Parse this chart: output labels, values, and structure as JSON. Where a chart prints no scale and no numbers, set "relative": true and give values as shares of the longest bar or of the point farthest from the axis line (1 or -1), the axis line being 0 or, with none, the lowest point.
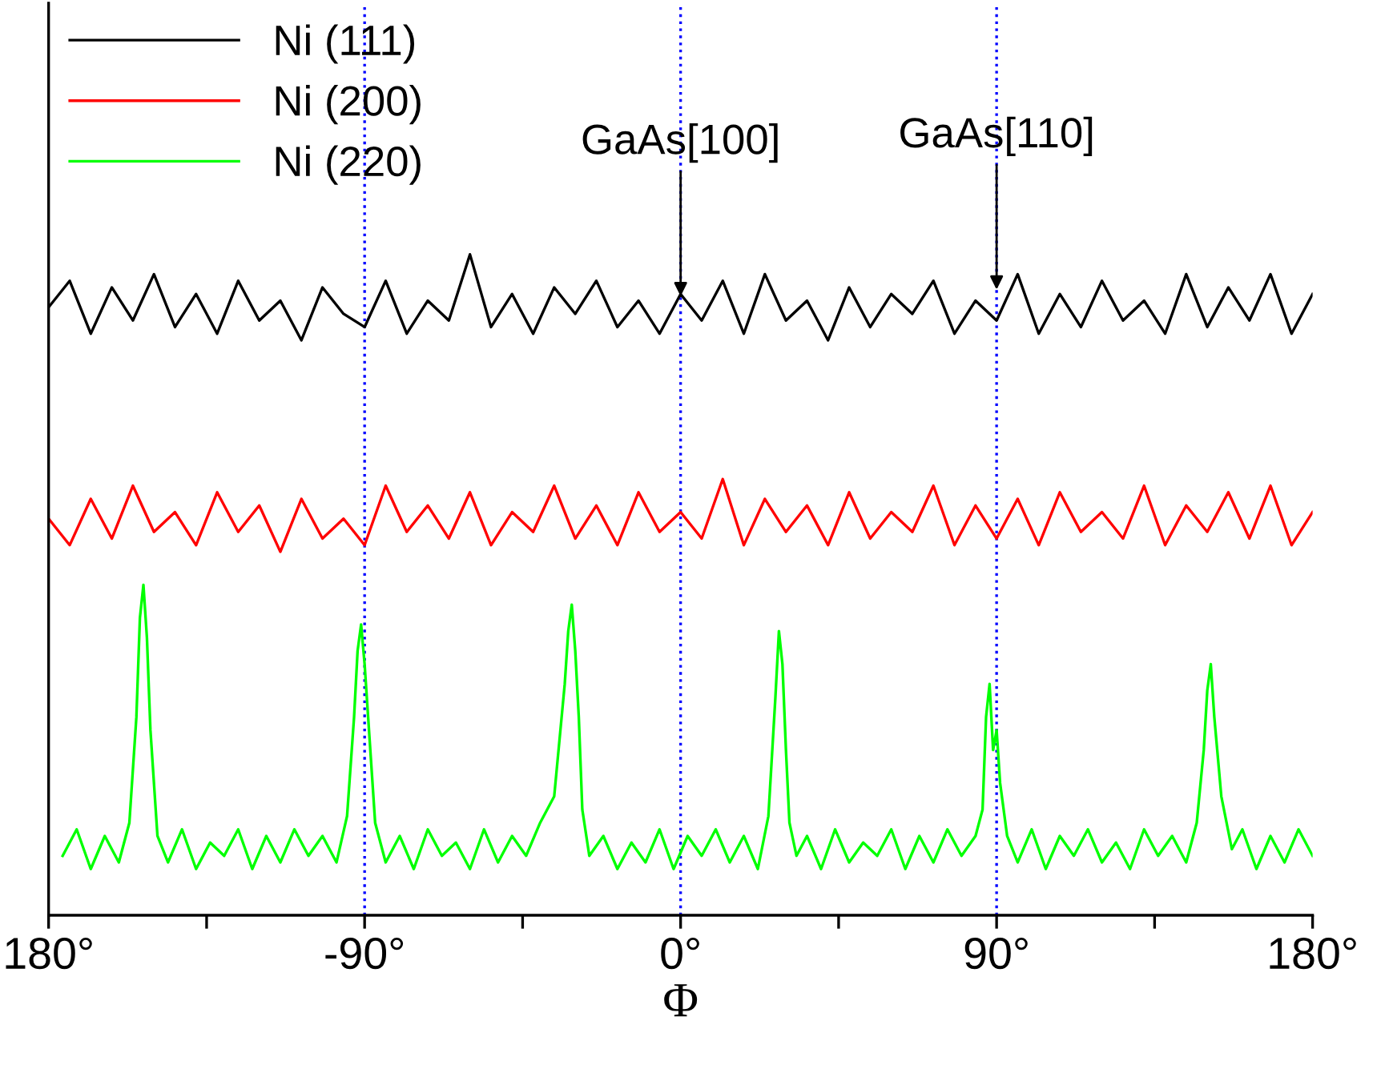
{
  "chart_data": {
    "type": "line",
    "relative": true,
    "xlabel": "Φ",
    "xlim": [
      -180,
      180
    ],
    "xticks": [
      {
        "value": -180,
        "label": "180°"
      },
      {
        "value": -135,
        "label": null
      },
      {
        "value": -90,
        "label": "-90°"
      },
      {
        "value": -45,
        "label": null
      },
      {
        "value": 0,
        "label": "0°"
      },
      {
        "value": 45,
        "label": null
      },
      {
        "value": 90,
        "label": "90°"
      },
      {
        "value": 135,
        "label": null
      },
      {
        "value": 180,
        "label": "180°"
      }
    ],
    "legend": "top left",
    "grid": false,
    "ref_lines": [
      {
        "axis": "x",
        "value": -90,
        "color": "#0000ff",
        "line_style": "dotted"
      },
      {
        "axis": "x",
        "value": 0,
        "color": "#0000ff",
        "line_style": "dotted"
      },
      {
        "axis": "x",
        "value": 90,
        "color": "#0000ff",
        "line_style": "dotted"
      }
    ],
    "annotations": [
      {
        "text": "GaAs[100]",
        "x": 0,
        "y": 0.93
      },
      {
        "text": "GaAs[110]",
        "x": 90,
        "y": 0.94
      }
    ],
    "series": [
      {
        "name": "Ni (111)",
        "color": "#000000",
        "x": [
          -180,
          -174,
          -168,
          -162,
          -156,
          -150,
          -144,
          -138,
          -132,
          -126,
          -120,
          -114,
          -108,
          -102,
          -96,
          -90,
          -84,
          -78,
          -72,
          -66,
          -60,
          -54,
          -48,
          -42,
          -36,
          -30,
          -24,
          -18,
          -12,
          -6,
          0,
          6,
          12,
          18,
          24,
          30,
          36,
          42,
          48,
          54,
          60,
          66,
          72,
          78,
          84,
          90,
          96,
          102,
          108,
          114,
          120,
          126,
          132,
          138,
          144,
          150,
          156,
          162,
          168,
          174,
          180
        ],
        "values": [
          0.92,
          0.96,
          0.88,
          0.95,
          0.9,
          0.97,
          0.89,
          0.94,
          0.88,
          0.96,
          0.9,
          0.93,
          0.87,
          0.95,
          0.91,
          0.89,
          0.96,
          0.88,
          0.93,
          0.9,
          1.0,
          0.89,
          0.94,
          0.88,
          0.95,
          0.91,
          0.96,
          0.89,
          0.93,
          0.88,
          0.94,
          0.9,
          0.96,
          0.88,
          0.97,
          0.9,
          0.93,
          0.87,
          0.95,
          0.89,
          0.94,
          0.91,
          0.96,
          0.88,
          0.93,
          0.9,
          0.97,
          0.88,
          0.94,
          0.89,
          0.96,
          0.9,
          0.93,
          0.88,
          0.97,
          0.89,
          0.95,
          0.9,
          0.97,
          0.88,
          0.94
        ]
      },
      {
        "name": "Ni (200)",
        "color": "#ff0000",
        "x": [
          -180,
          -174,
          -168,
          -162,
          -156,
          -150,
          -144,
          -138,
          -132,
          -126,
          -120,
          -114,
          -108,
          -102,
          -96,
          -90,
          -84,
          -78,
          -72,
          -66,
          -60,
          -54,
          -48,
          -42,
          -36,
          -30,
          -24,
          -18,
          -12,
          -6,
          0,
          6,
          12,
          18,
          24,
          30,
          36,
          42,
          48,
          54,
          60,
          66,
          72,
          78,
          84,
          90,
          96,
          102,
          108,
          114,
          120,
          126,
          132,
          138,
          144,
          150,
          156,
          162,
          168,
          174,
          180
        ],
        "values": [
          0.6,
          0.56,
          0.63,
          0.57,
          0.65,
          0.58,
          0.61,
          0.56,
          0.64,
          0.58,
          0.62,
          0.55,
          0.63,
          0.57,
          0.6,
          0.56,
          0.65,
          0.58,
          0.62,
          0.57,
          0.64,
          0.56,
          0.61,
          0.58,
          0.65,
          0.57,
          0.62,
          0.56,
          0.64,
          0.58,
          0.61,
          0.57,
          0.66,
          0.56,
          0.63,
          0.58,
          0.62,
          0.56,
          0.64,
          0.57,
          0.61,
          0.58,
          0.65,
          0.56,
          0.62,
          0.57,
          0.63,
          0.56,
          0.64,
          0.58,
          0.61,
          0.57,
          0.65,
          0.56,
          0.62,
          0.58,
          0.64,
          0.57,
          0.65,
          0.56,
          0.61
        ]
      },
      {
        "name": "Ni (220)",
        "color": "#00ff00",
        "x": [
          -176,
          -172,
          -168,
          -164,
          -160,
          -157,
          -155,
          -154,
          -153,
          -152,
          -151,
          -149,
          -146,
          -142,
          -138,
          -134,
          -130,
          -126,
          -122,
          -118,
          -114,
          -110,
          -106,
          -102,
          -98,
          -95,
          -93,
          -92,
          -91,
          -90,
          -89,
          -87,
          -84,
          -80,
          -76,
          -72,
          -68,
          -64,
          -60,
          -56,
          -52,
          -48,
          -44,
          -40,
          -36,
          -33,
          -32,
          -31,
          -30,
          -29,
          -28,
          -26,
          -22,
          -18,
          -14,
          -10,
          -6,
          -2,
          2,
          6,
          10,
          14,
          18,
          22,
          25,
          27,
          28,
          29,
          30,
          31,
          33,
          36,
          40,
          44,
          48,
          52,
          56,
          60,
          64,
          68,
          72,
          76,
          80,
          84,
          86,
          87,
          88,
          89,
          90,
          91,
          93,
          96,
          100,
          104,
          108,
          112,
          116,
          120,
          124,
          128,
          132,
          136,
          140,
          144,
          147,
          149,
          150,
          151,
          152,
          154,
          157,
          160,
          164,
          168,
          172,
          176,
          180
        ],
        "values": [
          0.09,
          0.13,
          0.07,
          0.12,
          0.08,
          0.14,
          0.3,
          0.45,
          0.5,
          0.42,
          0.28,
          0.12,
          0.08,
          0.13,
          0.07,
          0.11,
          0.09,
          0.13,
          0.07,
          0.12,
          0.08,
          0.13,
          0.09,
          0.12,
          0.08,
          0.15,
          0.3,
          0.4,
          0.44,
          0.38,
          0.3,
          0.14,
          0.08,
          0.12,
          0.07,
          0.13,
          0.09,
          0.11,
          0.07,
          0.13,
          0.08,
          0.12,
          0.09,
          0.14,
          0.18,
          0.35,
          0.43,
          0.47,
          0.4,
          0.3,
          0.16,
          0.09,
          0.12,
          0.07,
          0.11,
          0.08,
          0.13,
          0.07,
          0.12,
          0.09,
          0.13,
          0.08,
          0.12,
          0.07,
          0.15,
          0.33,
          0.43,
          0.38,
          0.25,
          0.14,
          0.09,
          0.12,
          0.07,
          0.13,
          0.08,
          0.11,
          0.09,
          0.13,
          0.07,
          0.12,
          0.08,
          0.13,
          0.09,
          0.12,
          0.16,
          0.3,
          0.35,
          0.25,
          0.28,
          0.2,
          0.12,
          0.08,
          0.13,
          0.07,
          0.12,
          0.09,
          0.13,
          0.08,
          0.11,
          0.07,
          0.13,
          0.09,
          0.12,
          0.08,
          0.14,
          0.25,
          0.34,
          0.38,
          0.3,
          0.18,
          0.1,
          0.13,
          0.07,
          0.12,
          0.08,
          0.13,
          0.09
        ]
      }
    ]
  }
}
